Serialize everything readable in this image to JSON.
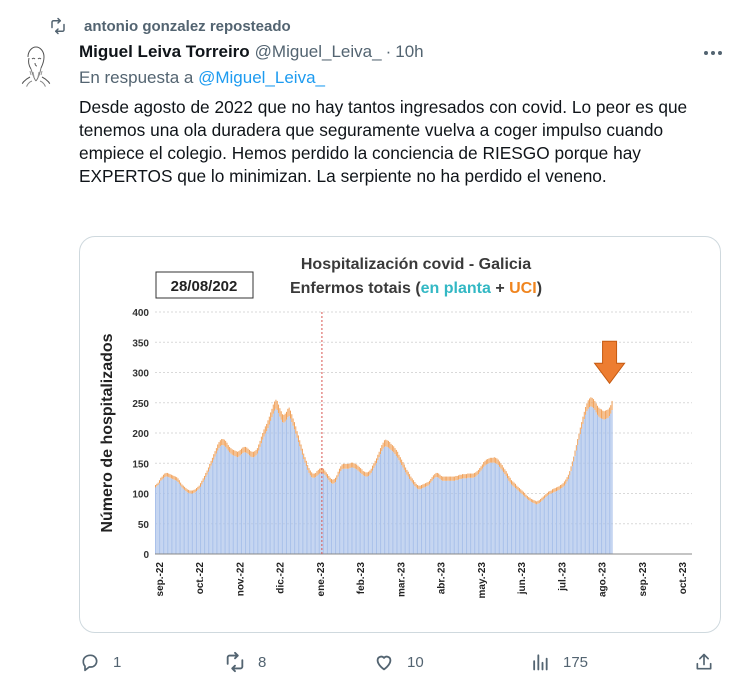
{
  "repost": {
    "text": "antonio gonzalez reposteado",
    "icon": "repost-icon"
  },
  "author": {
    "name": "Miguel Leiva Torreiro",
    "handle": "@Miguel_Leiva_",
    "time": "10h",
    "separator": "·",
    "avatar": "avatar-sketch-portrait"
  },
  "reply": {
    "prefix": "En respuesta a",
    "target": "@Miguel_Leiva_"
  },
  "tweet": {
    "text": "Desde agosto de 2022 que no hay tantos ingresados con covid. Lo peor es que tenemos una ola duradera que seguramente vuelva a coger impulso cuando empiece el colegio. Hemos perdido la conciencia de RIESGO porque hay EXPERTOS que lo minimizan. La serpiente no ha perdido el veneno."
  },
  "actions": {
    "reply": {
      "count": "1",
      "icon": "reply-icon"
    },
    "repost": {
      "count": "8",
      "icon": "repost-icon"
    },
    "like": {
      "count": "10",
      "icon": "heart-icon"
    },
    "views": {
      "count": "175",
      "icon": "views-icon"
    },
    "share": {
      "icon": "share-icon"
    }
  },
  "chart_data": {
    "type": "bar",
    "title": "Hospitalización covid - Galicia",
    "subtitle_prefix": "Enfermos totais (",
    "subtitle_planta": "en planta",
    "subtitle_plus": " + ",
    "subtitle_uci": "UCI",
    "subtitle_suffix": ")",
    "date_box": "28/08/202",
    "ylabel": "Número de hospitalizados",
    "xlabel": "",
    "ylim": [
      0,
      400
    ],
    "yticks": [
      0,
      50,
      100,
      150,
      200,
      250,
      300,
      350,
      400
    ],
    "month_labels": [
      "sep.-22",
      "oct.-22",
      "nov.-22",
      "dic.-22",
      "ene.-23",
      "feb.-23",
      "mar.-23",
      "abr.-23",
      "may.-23",
      "jun.-23",
      "jul.-23",
      "ago.-23",
      "sep.-23",
      "oct.-23"
    ],
    "vertical_marker_month": "ene.-23",
    "arrow_target": "latest value",
    "grid": true,
    "colors": {
      "planta": "#a9c1ea",
      "uci": "#f0a15a",
      "arrow": "#ed7d31",
      "marker": "#d9534f",
      "title_planta": "#33b8c4",
      "title_uci": "#f0851f"
    },
    "series": [
      {
        "name": "en planta",
        "values": [
          110,
          112,
          114,
          117,
          121,
          123,
          125,
          127,
          128,
          128,
          127,
          126,
          125,
          124,
          123,
          122,
          121,
          119,
          116,
          113,
          110,
          108,
          106,
          104,
          102,
          101,
          100,
          100,
          100,
          101,
          102,
          104,
          106,
          108,
          111,
          115,
          119,
          123,
          127,
          131,
          136,
          141,
          146,
          151,
          156,
          161,
          166,
          171,
          175,
          178,
          180,
          180,
          179,
          177,
          174,
          171,
          168,
          166,
          164,
          163,
          162,
          161,
          160,
          161,
          163,
          165,
          167,
          168,
          168,
          167,
          165,
          163,
          161,
          160,
          160,
          161,
          163,
          166,
          171,
          177,
          183,
          189,
          194,
          199,
          203,
          208,
          214,
          220,
          226,
          232,
          237,
          240,
          238,
          233,
          227,
          222,
          218,
          217,
          219,
          222,
          226,
          228,
          224,
          218,
          212,
          206,
          199,
          192,
          185,
          178,
          171,
          164,
          157,
          151,
          145,
          139,
          134,
          130,
          127,
          126,
          126,
          127,
          129,
          131,
          133,
          134,
          134,
          133,
          131,
          128,
          125,
          122,
          119,
          117,
          116,
          117,
          119,
          123,
          128,
          133,
          137,
          140,
          141,
          141,
          141,
          141,
          141,
          142,
          143,
          143,
          142,
          141,
          140,
          138,
          136,
          134,
          132,
          130,
          129,
          128,
          128,
          129,
          131,
          134,
          138,
          142,
          146,
          150,
          155,
          160,
          165,
          170,
          174,
          177,
          178,
          177,
          176,
          174,
          172,
          170,
          168,
          165,
          162,
          159,
          155,
          151,
          147,
          143,
          139,
          135,
          131,
          128,
          124,
          121,
          118,
          115,
          112,
          110,
          108,
          107,
          107,
          108,
          109,
          110,
          111,
          112,
          113,
          115,
          118,
          121,
          124,
          126,
          127,
          127,
          126,
          124,
          122,
          121,
          121,
          121,
          121,
          121,
          121,
          121,
          121,
          121,
          121,
          122,
          122,
          123,
          124,
          124,
          125,
          125,
          125,
          125,
          126,
          126,
          126,
          126,
          126,
          127,
          128,
          130,
          132,
          135,
          138,
          141,
          144,
          146,
          148,
          149,
          150,
          151,
          151,
          151,
          151,
          150,
          149,
          147,
          144,
          141,
          138,
          135,
          132,
          129,
          125,
          121,
          118,
          115,
          113,
          111,
          109,
          107,
          105,
          103,
          101,
          99,
          97,
          95,
          93,
          91,
          89,
          88,
          86,
          85,
          84,
          83,
          82,
          83,
          84,
          86,
          88,
          90,
          92,
          94,
          96,
          98,
          99,
          100,
          101,
          102,
          103,
          104,
          105,
          106,
          108,
          109,
          111,
          113,
          116,
          120,
          124,
          130,
          137,
          145,
          153,
          162,
          171,
          180,
          189,
          198,
          207,
          215,
          223,
          230,
          236,
          240,
          243,
          244,
          243,
          241,
          238,
          234,
          230,
          227,
          225,
          224,
          223,
          222,
          223,
          224,
          225,
          228,
          232,
          238
        ]
      },
      {
        "name": "UCI",
        "values": [
          4,
          4,
          4,
          5,
          5,
          5,
          6,
          6,
          6,
          6,
          6,
          6,
          6,
          6,
          6,
          6,
          6,
          6,
          6,
          5,
          5,
          5,
          5,
          5,
          5,
          5,
          5,
          5,
          5,
          5,
          5,
          5,
          5,
          5,
          6,
          6,
          6,
          6,
          7,
          7,
          7,
          8,
          8,
          8,
          9,
          9,
          9,
          10,
          10,
          10,
          10,
          10,
          10,
          10,
          10,
          9,
          9,
          9,
          9,
          9,
          9,
          9,
          9,
          9,
          9,
          9,
          9,
          9,
          9,
          9,
          9,
          9,
          9,
          9,
          9,
          9,
          9,
          9,
          10,
          10,
          11,
          11,
          12,
          12,
          12,
          13,
          13,
          14,
          14,
          15,
          15,
          15,
          15,
          14,
          14,
          14,
          13,
          13,
          13,
          13,
          14,
          14,
          13,
          13,
          12,
          12,
          12,
          11,
          11,
          10,
          10,
          10,
          9,
          9,
          9,
          8,
          8,
          8,
          8,
          7,
          7,
          7,
          8,
          8,
          8,
          8,
          8,
          8,
          7,
          7,
          7,
          7,
          7,
          7,
          7,
          7,
          7,
          7,
          8,
          8,
          8,
          8,
          8,
          8,
          8,
          8,
          8,
          8,
          8,
          8,
          8,
          8,
          8,
          8,
          8,
          8,
          8,
          7,
          7,
          7,
          7,
          7,
          7,
          7,
          8,
          8,
          8,
          8,
          9,
          9,
          10,
          10,
          10,
          11,
          11,
          11,
          11,
          11,
          10,
          10,
          10,
          10,
          10,
          10,
          9,
          9,
          9,
          9,
          9,
          8,
          8,
          8,
          8,
          7,
          7,
          7,
          7,
          6,
          6,
          6,
          6,
          6,
          6,
          6,
          6,
          6,
          6,
          6,
          6,
          6,
          6,
          6,
          7,
          7,
          7,
          7,
          7,
          7,
          7,
          7,
          7,
          7,
          7,
          7,
          7,
          7,
          7,
          7,
          7,
          7,
          7,
          7,
          7,
          7,
          7,
          7,
          7,
          7,
          7,
          7,
          7,
          7,
          7,
          7,
          7,
          7,
          7,
          7,
          8,
          8,
          8,
          8,
          8,
          8,
          8,
          8,
          9,
          9,
          9,
          9,
          9,
          9,
          9,
          8,
          8,
          8,
          8,
          8,
          8,
          7,
          7,
          7,
          7,
          6,
          6,
          6,
          6,
          6,
          6,
          6,
          5,
          5,
          5,
          5,
          5,
          5,
          5,
          5,
          5,
          5,
          5,
          5,
          5,
          5,
          5,
          5,
          5,
          5,
          5,
          5,
          6,
          6,
          6,
          6,
          6,
          6,
          6,
          6,
          6,
          7,
          7,
          7,
          7,
          7,
          8,
          8,
          8,
          9,
          9,
          10,
          10,
          11,
          11,
          12,
          12,
          13,
          13,
          14,
          14,
          15,
          15,
          15,
          15,
          15,
          15,
          15,
          15,
          15,
          14,
          14,
          14,
          14,
          14,
          14,
          14,
          15,
          15,
          16,
          16,
          18,
          20,
          21
        ]
      }
    ]
  }
}
